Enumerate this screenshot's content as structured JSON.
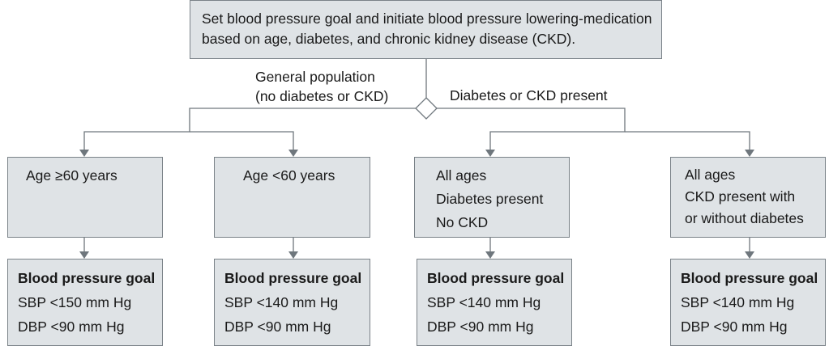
{
  "root": {
    "line1": "Set blood pressure goal and initiate blood pressure lowering-medication",
    "line2": "based on age, diabetes, and chronic kidney disease (CKD)."
  },
  "branches": {
    "general": {
      "line1": "General population",
      "line2": "(no diabetes or CKD)"
    },
    "diabetes_ckd": "Diabetes or CKD present"
  },
  "conditions": [
    {
      "lines": [
        "Age ≥60 years"
      ]
    },
    {
      "lines": [
        "Age <60 years"
      ]
    },
    {
      "lines": [
        "All ages",
        "Diabetes present",
        "No CKD"
      ]
    },
    {
      "lines": [
        "All ages",
        "CKD present with",
        "or without diabetes"
      ]
    }
  ],
  "goals": [
    {
      "title": "Blood pressure goal",
      "sbp": "SBP <150 mm Hg",
      "dbp": "DBP <90 mm Hg"
    },
    {
      "title": "Blood pressure goal",
      "sbp": "SBP <140 mm Hg",
      "dbp": "DBP <90 mm Hg"
    },
    {
      "title": "Blood pressure goal",
      "sbp": "SBP <140 mm Hg",
      "dbp": "DBP <90 mm Hg"
    },
    {
      "title": "Blood pressure goal",
      "sbp": "SBP <140 mm Hg",
      "dbp": "DBP <90 mm Hg"
    }
  ]
}
